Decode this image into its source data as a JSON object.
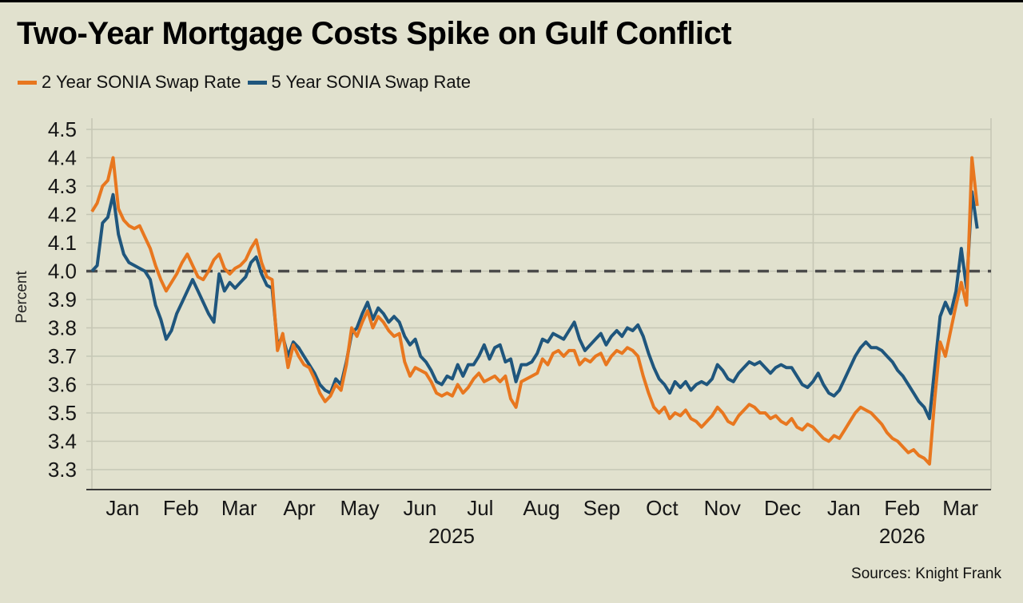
{
  "title": "Two-Year Mortgage Costs Spike on Gulf Conflict",
  "legend": [
    {
      "label": "2 Year SONIA Swap Rate",
      "color": "#e8771f"
    },
    {
      "label": "5 Year SONIA Swap Rate",
      "color": "#1f567d"
    }
  ],
  "source": "Sources: Knight Frank",
  "colors": {
    "background": "#e1e1ce",
    "gridline": "#c6c7b5",
    "axis": "#3a3a3a",
    "reference_dash": "#4a4a4a",
    "series_2yr": "#e8771f",
    "series_5yr": "#1f567d"
  },
  "chart_data": {
    "type": "line",
    "title": "Two-Year Mortgage Costs Spike on Gulf Conflict",
    "ylabel": "Percent",
    "ylim": [
      3.3,
      4.5
    ],
    "ytick_step": 0.1,
    "ytick_labels": [
      "4.5",
      "4.4",
      "4.3",
      "4.2",
      "4.1",
      "4.0",
      "3.9",
      "3.8",
      "3.7",
      "3.6",
      "3.5",
      "3.4",
      "3.3"
    ],
    "reference_line": 4.0,
    "grid": true,
    "legend_position": "top-left",
    "x_months": [
      "Jan",
      "Feb",
      "Mar",
      "Apr",
      "May",
      "Jun",
      "Jul",
      "Aug",
      "Sep",
      "Oct",
      "Nov",
      "Dec",
      "Jan",
      "Feb",
      "Mar"
    ],
    "x_month_day_bounds": [
      0,
      31,
      59,
      90,
      120,
      151,
      181,
      212,
      243,
      273,
      304,
      334,
      365,
      396,
      424,
      455
    ],
    "year_labels": [
      {
        "label": "2025",
        "day": 182
      },
      {
        "label": "2026",
        "day": 410
      }
    ],
    "year_boundary_days": [
      0,
      365
    ],
    "series_day_start": 0,
    "series_day_end": 448,
    "series": [
      {
        "name": "5 Year SONIA Swap Rate",
        "color": "#1f567d",
        "values": [
          4.0,
          4.02,
          4.17,
          4.19,
          4.27,
          4.13,
          4.06,
          4.03,
          4.02,
          4.01,
          4.0,
          3.97,
          3.88,
          3.83,
          3.76,
          3.79,
          3.85,
          3.89,
          3.93,
          3.97,
          3.93,
          3.89,
          3.85,
          3.82,
          3.99,
          3.93,
          3.96,
          3.94,
          3.96,
          3.98,
          4.03,
          4.05,
          3.99,
          3.95,
          3.94,
          3.74,
          3.77,
          3.7,
          3.75,
          3.73,
          3.7,
          3.67,
          3.64,
          3.6,
          3.58,
          3.57,
          3.62,
          3.6,
          3.68,
          3.78,
          3.8,
          3.85,
          3.89,
          3.83,
          3.87,
          3.85,
          3.82,
          3.84,
          3.82,
          3.77,
          3.74,
          3.76,
          3.7,
          3.68,
          3.65,
          3.61,
          3.6,
          3.63,
          3.62,
          3.67,
          3.63,
          3.67,
          3.67,
          3.7,
          3.74,
          3.69,
          3.73,
          3.74,
          3.68,
          3.69,
          3.61,
          3.67,
          3.67,
          3.68,
          3.71,
          3.76,
          3.75,
          3.78,
          3.77,
          3.76,
          3.79,
          3.82,
          3.76,
          3.72,
          3.74,
          3.76,
          3.78,
          3.74,
          3.77,
          3.79,
          3.77,
          3.8,
          3.79,
          3.81,
          3.77,
          3.71,
          3.66,
          3.62,
          3.6,
          3.57,
          3.61,
          3.59,
          3.61,
          3.58,
          3.6,
          3.61,
          3.6,
          3.62,
          3.67,
          3.65,
          3.62,
          3.61,
          3.64,
          3.66,
          3.68,
          3.67,
          3.68,
          3.66,
          3.64,
          3.66,
          3.67,
          3.66,
          3.66,
          3.63,
          3.6,
          3.59,
          3.61,
          3.64,
          3.6,
          3.57,
          3.56,
          3.58,
          3.62,
          3.66,
          3.7,
          3.73,
          3.75,
          3.73,
          3.73,
          3.72,
          3.7,
          3.68,
          3.65,
          3.63,
          3.6,
          3.57,
          3.54,
          3.52,
          3.48,
          3.66,
          3.84,
          3.89,
          3.85,
          3.93,
          4.08,
          3.94,
          4.28,
          4.15
        ]
      },
      {
        "name": "2 Year SONIA Swap Rate",
        "color": "#e8771f",
        "values": [
          4.21,
          4.24,
          4.3,
          4.32,
          4.4,
          4.22,
          4.18,
          4.16,
          4.15,
          4.16,
          4.12,
          4.08,
          4.02,
          3.97,
          3.93,
          3.96,
          3.99,
          4.03,
          4.06,
          4.02,
          3.98,
          3.97,
          4.0,
          4.04,
          4.06,
          4.01,
          3.99,
          4.01,
          4.02,
          4.04,
          4.08,
          4.11,
          4.03,
          3.98,
          3.97,
          3.72,
          3.78,
          3.66,
          3.74,
          3.7,
          3.67,
          3.66,
          3.62,
          3.57,
          3.54,
          3.56,
          3.6,
          3.58,
          3.67,
          3.8,
          3.77,
          3.82,
          3.86,
          3.8,
          3.84,
          3.82,
          3.79,
          3.77,
          3.78,
          3.68,
          3.63,
          3.66,
          3.65,
          3.64,
          3.61,
          3.57,
          3.56,
          3.57,
          3.56,
          3.6,
          3.57,
          3.59,
          3.62,
          3.64,
          3.61,
          3.62,
          3.63,
          3.61,
          3.63,
          3.55,
          3.52,
          3.61,
          3.62,
          3.63,
          3.64,
          3.69,
          3.67,
          3.71,
          3.72,
          3.7,
          3.72,
          3.72,
          3.67,
          3.69,
          3.68,
          3.7,
          3.71,
          3.67,
          3.7,
          3.72,
          3.71,
          3.73,
          3.72,
          3.7,
          3.63,
          3.57,
          3.52,
          3.5,
          3.52,
          3.48,
          3.5,
          3.49,
          3.51,
          3.48,
          3.47,
          3.45,
          3.47,
          3.49,
          3.52,
          3.5,
          3.47,
          3.46,
          3.49,
          3.51,
          3.53,
          3.52,
          3.5,
          3.5,
          3.48,
          3.49,
          3.47,
          3.46,
          3.48,
          3.45,
          3.44,
          3.46,
          3.45,
          3.43,
          3.41,
          3.4,
          3.42,
          3.41,
          3.44,
          3.47,
          3.5,
          3.52,
          3.51,
          3.5,
          3.48,
          3.46,
          3.43,
          3.41,
          3.4,
          3.38,
          3.36,
          3.37,
          3.35,
          3.34,
          3.32,
          3.55,
          3.75,
          3.7,
          3.79,
          3.88,
          3.96,
          3.88,
          4.4,
          4.23
        ]
      }
    ]
  }
}
